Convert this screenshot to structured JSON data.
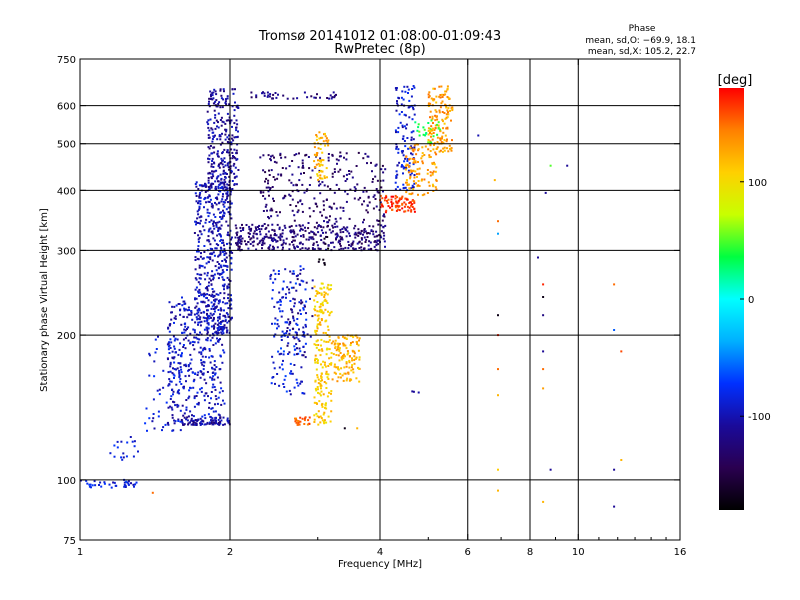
{
  "chart_data": {
    "type": "scatter",
    "title": "Tromsø 20141012 01:08:00-01:09:43",
    "subtitle": "RwPretec (8p)",
    "xlabel": "Frequency [MHz]",
    "ylabel": "Stationary phase Virtual Height [km]",
    "x_scale": "log",
    "y_scale": "log",
    "xlim": [
      1,
      16
    ],
    "ylim": [
      75,
      750
    ],
    "x_ticks": [
      1,
      2,
      4,
      6,
      8,
      10,
      16
    ],
    "y_ticks": [
      75,
      100,
      200,
      300,
      400,
      500,
      600,
      750
    ],
    "x_grid": [
      2,
      4,
      6,
      8,
      10
    ],
    "y_grid": [
      100,
      200,
      300,
      400,
      500,
      600
    ],
    "grid": true,
    "colorbar": {
      "label": "[deg]",
      "range": [
        -180,
        180
      ],
      "ticks": [
        100,
        0,
        -100
      ],
      "colormap": [
        "#000000",
        "#2a0050",
        "#1a0a9a",
        "#0030ff",
        "#00b0ff",
        "#00ffff",
        "#00ff40",
        "#c8ff00",
        "#ffd000",
        "#ff8000",
        "#ff0000"
      ]
    },
    "phase_stats": {
      "header": "Phase",
      "line_o": "mean, sd,O: −69.9, 18.1",
      "line_x": "mean, sd,X: 105.2, 22.7"
    },
    "clusters": [
      {
        "f": [
          0.98,
          1.3
        ],
        "h": [
          96,
          100
        ],
        "phase": -85,
        "n": 40
      },
      {
        "f": [
          1.15,
          1.35
        ],
        "h": [
          110,
          125
        ],
        "phase": -90,
        "n": 18
      },
      {
        "f": [
          1.35,
          1.6
        ],
        "h": [
          125,
          200
        ],
        "phase": -90,
        "n": 60
      },
      {
        "f": [
          1.5,
          1.95
        ],
        "h": [
          130,
          240
        ],
        "phase": -95,
        "n": 380
      },
      {
        "f": [
          1.7,
          2.02
        ],
        "h": [
          200,
          420
        ],
        "phase": -100,
        "n": 520
      },
      {
        "f": [
          1.8,
          2.08
        ],
        "h": [
          400,
          650
        ],
        "phase": -110,
        "n": 260
      },
      {
        "f": [
          1.6,
          2.0
        ],
        "h": [
          130,
          135
        ],
        "phase": -110,
        "n": 70
      },
      {
        "f": [
          2.05,
          4.1
        ],
        "h": [
          300,
          340
        ],
        "phase": -125,
        "n": 380
      },
      {
        "f": [
          2.3,
          4.1
        ],
        "h": [
          340,
          480
        ],
        "phase": -130,
        "n": 260
      },
      {
        "f": [
          2.2,
          3.3
        ],
        "h": [
          620,
          640
        ],
        "phase": -120,
        "n": 40
      },
      {
        "f": [
          2.4,
          2.85
        ],
        "h": [
          150,
          280
        ],
        "phase": -85,
        "n": 150
      },
      {
        "f": [
          2.6,
          2.95
        ],
        "h": [
          180,
          280
        ],
        "phase": -115,
        "n": 50
      },
      {
        "f": [
          2.7,
          2.9
        ],
        "h": [
          130,
          135
        ],
        "phase": 150,
        "n": 25
      },
      {
        "f": [
          2.95,
          3.2
        ],
        "h": [
          130,
          260
        ],
        "phase": 110,
        "n": 200
      },
      {
        "f": [
          3.2,
          3.65
        ],
        "h": [
          160,
          200
        ],
        "phase": 120,
        "n": 120
      },
      {
        "f": [
          2.95,
          3.15
        ],
        "h": [
          420,
          530
        ],
        "phase": 120,
        "n": 60
      },
      {
        "f": [
          3.0,
          3.15
        ],
        "h": [
          280,
          320
        ],
        "phase": -170,
        "n": 10
      },
      {
        "f": [
          4.0,
          4.7
        ],
        "h": [
          360,
          390
        ],
        "phase": 165,
        "n": 80
      },
      {
        "f": [
          4.3,
          4.7
        ],
        "h": [
          400,
          660
        ],
        "phase": -90,
        "n": 120
      },
      {
        "f": [
          4.5,
          5.2
        ],
        "h": [
          390,
          500
        ],
        "phase": 130,
        "n": 110
      },
      {
        "f": [
          5.0,
          5.6
        ],
        "h": [
          480,
          660
        ],
        "phase": 130,
        "n": 140
      },
      {
        "f": [
          4.7,
          5.3
        ],
        "h": [
          500,
          560
        ],
        "phase": 40,
        "n": 25
      },
      {
        "f": [
          4.6,
          4.8
        ],
        "h": [
          150,
          155
        ],
        "phase": -120,
        "n": 3
      }
    ],
    "sparse_points": [
      {
        "f": 6.3,
        "h": 520,
        "phase": -100
      },
      {
        "f": 6.8,
        "h": 420,
        "phase": 120
      },
      {
        "f": 6.9,
        "h": 345,
        "phase": 150
      },
      {
        "f": 6.9,
        "h": 325,
        "phase": -40
      },
      {
        "f": 6.9,
        "h": 220,
        "phase": -170
      },
      {
        "f": 6.9,
        "h": 200,
        "phase": 170
      },
      {
        "f": 6.9,
        "h": 170,
        "phase": 150
      },
      {
        "f": 6.9,
        "h": 150,
        "phase": 120
      },
      {
        "f": 6.9,
        "h": 105,
        "phase": 110
      },
      {
        "f": 6.9,
        "h": 95,
        "phase": 120
      },
      {
        "f": 8.3,
        "h": 290,
        "phase": -110
      },
      {
        "f": 8.5,
        "h": 255,
        "phase": 170
      },
      {
        "f": 8.5,
        "h": 240,
        "phase": -170
      },
      {
        "f": 8.5,
        "h": 220,
        "phase": -120
      },
      {
        "f": 8.5,
        "h": 185,
        "phase": -110
      },
      {
        "f": 8.5,
        "h": 170,
        "phase": 150
      },
      {
        "f": 8.5,
        "h": 155,
        "phase": 130
      },
      {
        "f": 8.5,
        "h": 90,
        "phase": 120
      },
      {
        "f": 8.6,
        "h": 395,
        "phase": -110
      },
      {
        "f": 8.8,
        "h": 450,
        "phase": 50
      },
      {
        "f": 8.8,
        "h": 105,
        "phase": -110
      },
      {
        "f": 9.5,
        "h": 450,
        "phase": -110
      },
      {
        "f": 11.8,
        "h": 255,
        "phase": 150
      },
      {
        "f": 11.8,
        "h": 205,
        "phase": -60
      },
      {
        "f": 11.8,
        "h": 105,
        "phase": -110
      },
      {
        "f": 11.8,
        "h": 88,
        "phase": -110
      },
      {
        "f": 12.2,
        "h": 185,
        "phase": 160
      },
      {
        "f": 12.2,
        "h": 110,
        "phase": 120
      },
      {
        "f": 1.4,
        "h": 94,
        "phase": 150
      },
      {
        "f": 3.4,
        "h": 128,
        "phase": -170
      },
      {
        "f": 3.6,
        "h": 128,
        "phase": 120
      }
    ]
  }
}
